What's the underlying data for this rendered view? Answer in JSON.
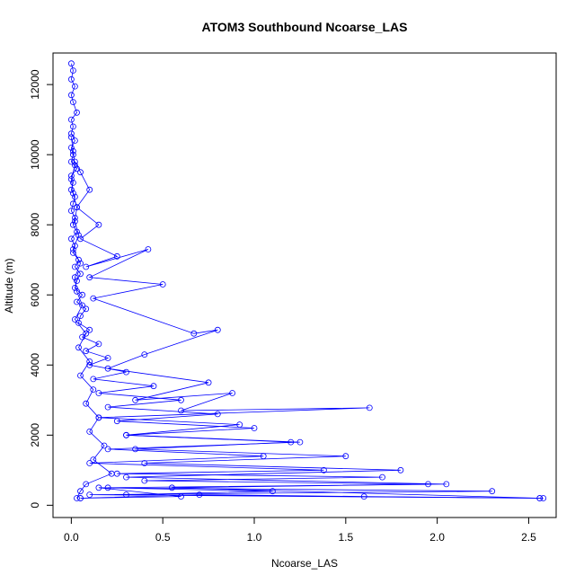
{
  "chart_data": {
    "type": "line",
    "title": "ATOM3 Southbound Ncoarse_LAS",
    "xlabel": "Ncoarse_LAS",
    "ylabel": "Altitude (m)",
    "xlim": [
      -0.1,
      2.65
    ],
    "ylim": [
      -350,
      12900
    ],
    "xticks": [
      "0.0",
      "0.5",
      "1.0",
      "1.5",
      "2.0",
      "2.5"
    ],
    "xtick_values": [
      0,
      0.5,
      1.0,
      1.5,
      2.0,
      2.5
    ],
    "yticks": [
      "0",
      "2000",
      "4000",
      "6000",
      "8000",
      "10000",
      "12000"
    ],
    "ytick_values": [
      0,
      2000,
      4000,
      6000,
      8000,
      10000,
      12000
    ],
    "grid": false,
    "marker": "open-circle",
    "line": true,
    "colors": {
      "series": "#0000ff",
      "axis": "#000000",
      "background": "#ffffff"
    },
    "series": [
      {
        "x": [
          0.0,
          0.01,
          0.0,
          0.02,
          0.0,
          0.01,
          0.03,
          0.0,
          0.01,
          0.0,
          0.02,
          0.0,
          0.01,
          0.0,
          0.03,
          0.0,
          0.01,
          0.0,
          0.02,
          0.01,
          0.0,
          0.02,
          0.01,
          0.03,
          0.0,
          0.02,
          0.01,
          0.04,
          0.02,
          0.05,
          0.03,
          0.02,
          0.06,
          0.03,
          0.08,
          0.05,
          0.04,
          0.1,
          0.06,
          0.15,
          0.08,
          0.2,
          0.1,
          0.3,
          0.12,
          0.45,
          0.15,
          0.6,
          0.2,
          0.8,
          0.25,
          1.0,
          0.3,
          1.2,
          0.35,
          1.5,
          0.4,
          1.8,
          0.3,
          2.05,
          0.2,
          2.3,
          0.1,
          2.56,
          2.58,
          1.6,
          0.7,
          0.05
        ],
        "y": [
          12600,
          12400,
          12150,
          11950,
          11700,
          11500,
          11200,
          11000,
          10800,
          10600,
          10400,
          10200,
          10000,
          9800,
          9600,
          9400,
          9200,
          9000,
          8800,
          8600,
          8400,
          8200,
          8000,
          7800,
          7600,
          7400,
          7200,
          7000,
          6800,
          6600,
          6400,
          6200,
          6000,
          5800,
          5600,
          5400,
          5200,
          5000,
          4800,
          4600,
          4400,
          4200,
          4000,
          3800,
          3600,
          3400,
          3200,
          3000,
          2800,
          2600,
          2400,
          2200,
          2000,
          1800,
          1600,
          1400,
          1200,
          1000,
          800,
          600,
          500,
          400,
          300,
          200,
          200,
          250,
          300,
          200
        ]
      },
      {
        "x": [
          0.02,
          0.05,
          0.1,
          0.03,
          0.15,
          0.05,
          0.25,
          0.08,
          0.42,
          0.1,
          0.5,
          0.12,
          0.67,
          0.8,
          0.4,
          0.2,
          0.75,
          0.35,
          0.88,
          0.6,
          1.63,
          0.15,
          0.92,
          0.3,
          1.25,
          0.2,
          1.05,
          0.1,
          1.38,
          0.25,
          1.7,
          0.4,
          1.95,
          0.55,
          2.56,
          0.3,
          1.1,
          0.15,
          0.6,
          0.05
        ],
        "y": [
          9800,
          9500,
          9000,
          8500,
          8000,
          7600,
          7100,
          6800,
          7300,
          6500,
          6300,
          5900,
          4900,
          5000,
          4300,
          3900,
          3500,
          3000,
          3200,
          2700,
          2780,
          2500,
          2300,
          2000,
          1800,
          1600,
          1400,
          1200,
          1000,
          900,
          800,
          700,
          600,
          500,
          200,
          300,
          400,
          500,
          250,
          200
        ]
      },
      {
        "x": [
          0.0,
          0.01,
          0.02,
          0.0,
          0.01,
          0.03,
          0.02,
          0.04,
          0.01,
          0.05,
          0.02,
          0.03,
          0.06,
          0.02,
          0.08,
          0.04,
          0.1,
          0.05,
          0.12,
          0.08,
          0.15,
          0.1,
          0.18,
          0.12,
          0.22,
          0.08,
          0.05,
          0.03
        ],
        "y": [
          10500,
          10100,
          9700,
          9300,
          8900,
          8500,
          8100,
          7700,
          7300,
          6900,
          6500,
          6100,
          5700,
          5300,
          4900,
          4500,
          4100,
          3700,
          3300,
          2900,
          2500,
          2100,
          1700,
          1300,
          900,
          600,
          400,
          200
        ]
      }
    ]
  }
}
